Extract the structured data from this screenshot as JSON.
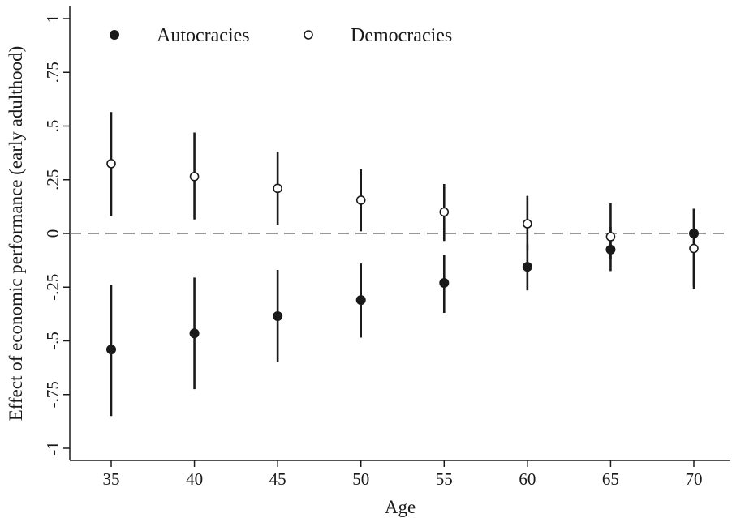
{
  "chart_data": {
    "type": "scatter",
    "xlabel": "Age",
    "ylabel": "Effect of economic performance (early adulthood)",
    "x": [
      35,
      40,
      45,
      50,
      55,
      60,
      65,
      70
    ],
    "x_tick_labels": [
      "35",
      "40",
      "45",
      "50",
      "55",
      "60",
      "65",
      "70"
    ],
    "xlim": [
      32.5,
      72.5
    ],
    "ylim": [
      -1.05,
      1.05
    ],
    "y_ticks": [
      -1,
      -0.75,
      -0.5,
      -0.25,
      0,
      0.25,
      0.5,
      0.75,
      1
    ],
    "y_tick_labels": [
      "-1",
      "-.75",
      "-.5",
      "-.25",
      "0",
      ".25",
      ".5",
      ".75",
      "1"
    ],
    "reference_line": {
      "y": 0,
      "style": "dashed"
    },
    "grid": false,
    "legend_position": "top-left",
    "series": [
      {
        "name": "Autocracies",
        "marker": "filled-circle",
        "values": [
          -0.54,
          -0.465,
          -0.385,
          -0.31,
          -0.23,
          -0.155,
          -0.075,
          0.0
        ],
        "ci_low": [
          -0.85,
          -0.725,
          -0.6,
          -0.485,
          -0.37,
          -0.265,
          -0.175,
          -0.245
        ],
        "ci_high": [
          -0.24,
          -0.205,
          -0.17,
          -0.14,
          -0.1,
          -0.05,
          0.03,
          0.115
        ]
      },
      {
        "name": "Democracies",
        "marker": "hollow-circle",
        "values": [
          0.325,
          0.265,
          0.21,
          0.155,
          0.1,
          0.045,
          -0.015,
          -0.07
        ],
        "ci_low": [
          0.08,
          0.065,
          0.04,
          0.01,
          -0.035,
          -0.08,
          -0.12,
          -0.26
        ],
        "ci_high": [
          0.565,
          0.47,
          0.38,
          0.3,
          0.23,
          0.175,
          0.14,
          0.115
        ]
      }
    ],
    "colors": {
      "ink": "#1a1a1a",
      "axis": "#1a1a1a",
      "reference_line": "#777777",
      "background": "#ffffff"
    }
  }
}
